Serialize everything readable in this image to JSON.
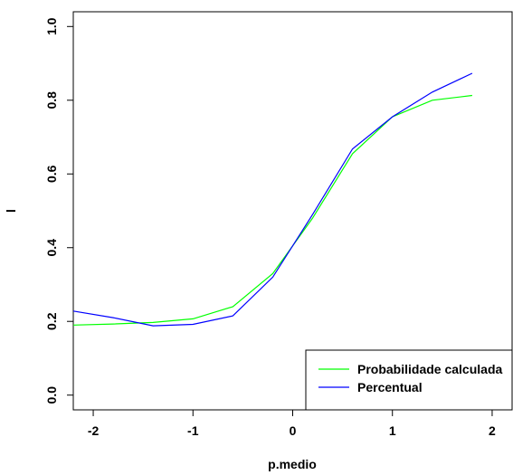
{
  "chart_data": {
    "type": "line",
    "xlabel": "p.medio",
    "ylabel": "l",
    "xlim": [
      -2.2,
      2.2
    ],
    "ylim": [
      -0.04,
      1.04
    ],
    "xticks": [
      -2,
      -1,
      0,
      1,
      2
    ],
    "xtick_labels": [
      "-2",
      "-1",
      "0",
      "1",
      "2"
    ],
    "yticks": [
      0.0,
      0.2,
      0.4,
      0.6,
      0.8,
      1.0
    ],
    "ytick_labels": [
      "0.0",
      "0.2",
      "0.4",
      "0.6",
      "0.8",
      "1.0"
    ],
    "grid": false,
    "legend_position": "bottom-right",
    "series": [
      {
        "name": "Probabilidade calculada",
        "color": "#00ff00",
        "x": [
          -2.2,
          -1.8,
          -1.4,
          -1.0,
          -0.6,
          -0.2,
          0.2,
          0.6,
          1.0,
          1.4,
          1.8
        ],
        "y": [
          0.19,
          0.193,
          0.197,
          0.207,
          0.24,
          0.33,
          0.48,
          0.655,
          0.755,
          0.8,
          0.813
        ]
      },
      {
        "name": "Percentual",
        "color": "#0000ff",
        "x": [
          -2.2,
          -1.8,
          -1.4,
          -1.0,
          -0.6,
          -0.2,
          0.2,
          0.6,
          1.0,
          1.4,
          1.8
        ],
        "y": [
          0.228,
          0.21,
          0.188,
          0.192,
          0.215,
          0.32,
          0.49,
          0.668,
          0.755,
          0.822,
          0.873
        ]
      }
    ]
  }
}
